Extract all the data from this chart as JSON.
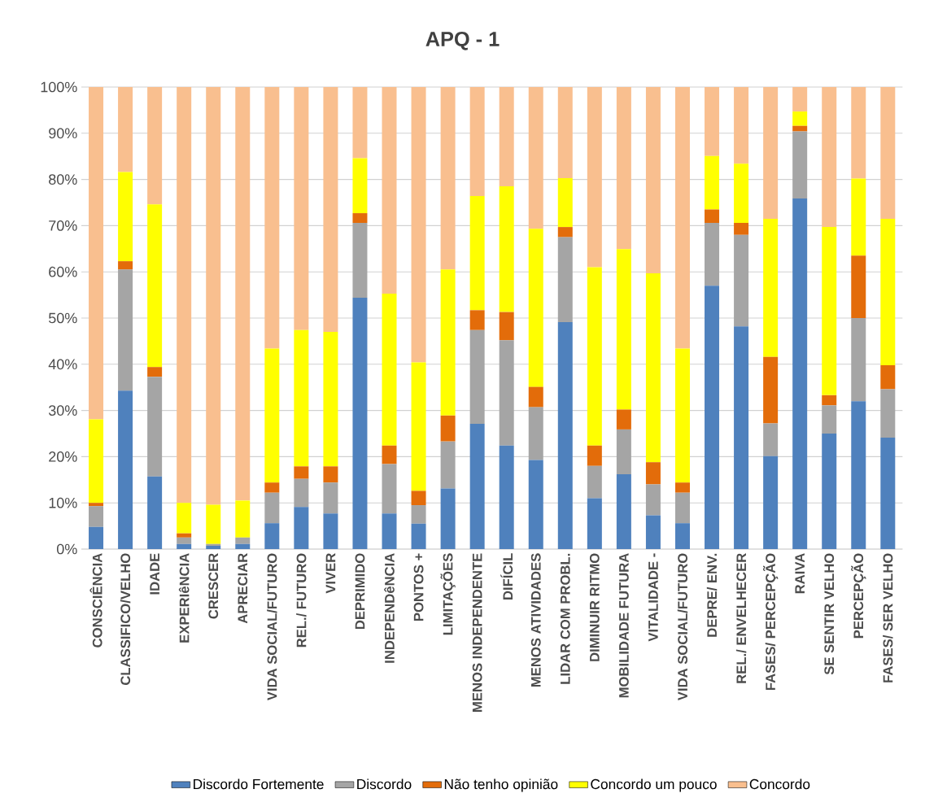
{
  "chart_data": {
    "type": "bar",
    "title": "APQ - 1",
    "stacked": true,
    "grid": "y",
    "legend": "bottom",
    "categories": [
      "CONSCIÊNCIA",
      "CLASSIFICO/VELHO",
      "IDADE",
      "EXPERIêNCIA",
      "CRESCER",
      "APRECIAR",
      "VIDA SOCIAL/FUTURO",
      "REL./ FUTURO",
      "VIVER",
      "DEPRIMIDO",
      "INDEPENDêNCIA",
      "PONTOS +",
      "LIMITAÇÕES",
      "MENOS INDEPENDENTE",
      "DIFÍCIL",
      "MENOS ATIVIDADES",
      "LIDAR COM PROBL.",
      "DIMINUIR RITMO",
      "MOBILIDADE FUTURA",
      "VITALIDADE -",
      "VIDA SOCIAL/FUTURO",
      "DEPRE/ ENV.",
      "REL./ ENVELHECER",
      "FASES/ PERCEPÇÃO",
      "RAIVA",
      "SE SENTIR VELHO",
      "PERCEPÇÃO",
      "FASES/ SER VELHO"
    ],
    "series": [
      {
        "name": "Discordo Fortemente",
        "color": "#4f81bd",
        "values": [
          4.8,
          34.3,
          15.7,
          1.1,
          0.7,
          1.1,
          5.6,
          9.1,
          7.7,
          54.4,
          7.7,
          5.5,
          13.1,
          27.1,
          22.4,
          19.3,
          49.1,
          11.0,
          16.2,
          7.3,
          5.6,
          57.0,
          48.2,
          20.1,
          75.9,
          25.0,
          32.0,
          24.1
        ]
      },
      {
        "name": "Discordo",
        "color": "#a5a5a5",
        "values": [
          4.5,
          26.2,
          21.6,
          1.4,
          0.4,
          1.4,
          6.6,
          6.1,
          6.7,
          16.2,
          10.7,
          4.0,
          10.2,
          20.3,
          22.8,
          11.4,
          18.4,
          7.0,
          9.7,
          6.7,
          6.6,
          13.6,
          19.8,
          7.1,
          14.5,
          6.1,
          18.0,
          10.5
        ]
      },
      {
        "name": "Não tenho opinião",
        "color": "#e36c0a",
        "values": [
          0.7,
          1.8,
          2.1,
          0.9,
          0,
          0,
          2.2,
          2.7,
          3.5,
          2.1,
          4.0,
          3.1,
          5.6,
          4.3,
          6.1,
          4.4,
          2.2,
          4.4,
          4.3,
          4.8,
          2.2,
          2.9,
          2.6,
          14.4,
          1.2,
          2.2,
          13.5,
          5.2
        ]
      },
      {
        "name": "Concordo um pouco",
        "color": "#ffff00",
        "values": [
          18.1,
          19.3,
          35.2,
          6.6,
          8.5,
          8.0,
          29.0,
          29.5,
          29.1,
          11.9,
          32.9,
          27.8,
          31.6,
          24.7,
          27.2,
          34.2,
          10.6,
          38.6,
          34.7,
          40.9,
          29.0,
          11.6,
          12.8,
          29.9,
          3.1,
          36.4,
          16.7,
          31.7
        ]
      },
      {
        "name": "Concordo",
        "color": "#f9bf8f",
        "values": [
          71.9,
          18.4,
          25.4,
          90.0,
          90.4,
          89.5,
          56.6,
          52.6,
          53.0,
          15.4,
          44.7,
          59.6,
          39.5,
          23.6,
          21.5,
          30.7,
          19.7,
          39.0,
          35.1,
          40.3,
          56.6,
          14.9,
          16.6,
          28.5,
          5.3,
          30.3,
          19.8,
          28.5
        ]
      }
    ],
    "ylim": [
      0,
      100
    ],
    "yticks": [
      {
        "value": 0,
        "label": "0%"
      },
      {
        "value": 10,
        "label": "10%"
      },
      {
        "value": 20,
        "label": "20%"
      },
      {
        "value": 30,
        "label": "30%"
      },
      {
        "value": 40,
        "label": "40%"
      },
      {
        "value": 50,
        "label": "50%"
      },
      {
        "value": 60,
        "label": "60%"
      },
      {
        "value": 70,
        "label": "70%"
      },
      {
        "value": 80,
        "label": "80%"
      },
      {
        "value": 90,
        "label": "90%"
      },
      {
        "value": 100,
        "label": "100%"
      }
    ]
  }
}
